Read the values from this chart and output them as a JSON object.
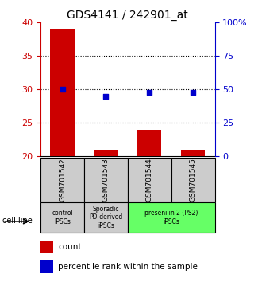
{
  "title": "GDS4141 / 242901_at",
  "samples": [
    "GSM701542",
    "GSM701543",
    "GSM701544",
    "GSM701545"
  ],
  "count_values": [
    39.0,
    21.0,
    24.0,
    21.0
  ],
  "percentile_values": [
    50.0,
    45.0,
    48.0,
    48.0
  ],
  "count_base": 20.0,
  "ylim_left": [
    20,
    40
  ],
  "ylim_right": [
    0,
    100
  ],
  "yticks_left": [
    20,
    25,
    30,
    35,
    40
  ],
  "yticks_right": [
    0,
    25,
    50,
    75,
    100
  ],
  "ytick_labels_right": [
    "0",
    "25",
    "50",
    "75",
    "100%"
  ],
  "bar_color": "#cc0000",
  "scatter_color": "#0000cc",
  "grid_ticks": [
    25,
    30,
    35
  ],
  "group_labels": [
    "control\nIPSCs",
    "Sporadic\nPD-derived\niPSCs",
    "presenilin 2 (PS2)\niPSCs"
  ],
  "group_colors": [
    "#cccccc",
    "#cccccc",
    "#66ff66"
  ],
  "label_count": "count",
  "label_percentile": "percentile rank within the sample",
  "cell_line_label": "cell line",
  "bar_width": 0.55,
  "tick_label_color_left": "#cc0000",
  "tick_label_color_right": "#0000cc",
  "bg_color": "#ffffff"
}
